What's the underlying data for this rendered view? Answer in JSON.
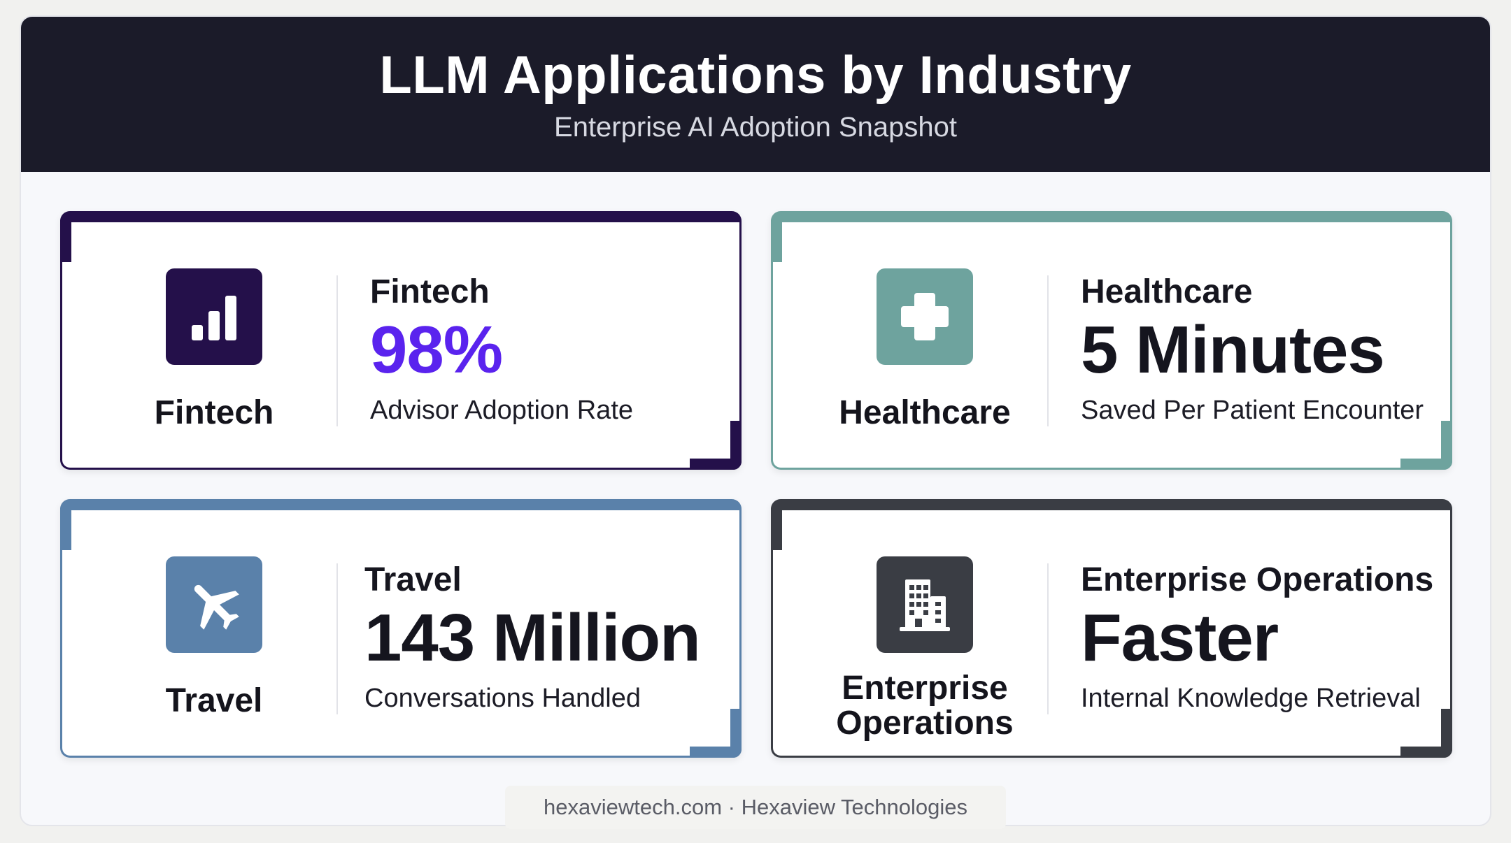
{
  "header": {
    "title": "LLM Applications by Industry",
    "subtitle": "Enterprise AI Adoption Snapshot"
  },
  "cards": [
    {
      "icon": "bar-chart-icon",
      "icon_label": "Fintech",
      "industry": "Fintech",
      "metric": "98%",
      "description": "Advisor Adoption Rate",
      "accent_color": "#24104a",
      "metric_color": "#5a23ee"
    },
    {
      "icon": "medical-cross-icon",
      "icon_label": "Healthcare",
      "industry": "Healthcare",
      "metric": "5 Minutes",
      "description": "Saved Per Patient Encounter",
      "accent_color": "#6ea39e",
      "metric_color": "#15151e"
    },
    {
      "icon": "airplane-icon",
      "icon_label": "Travel",
      "industry": "Travel",
      "metric": "143 Million",
      "description": "Conversations Handled",
      "accent_color": "#5a81aa",
      "metric_color": "#15151e"
    },
    {
      "icon": "office-building-icon",
      "icon_label": "Enterprise Operations",
      "industry": "Enterprise Operations",
      "metric": "Faster",
      "description": "Internal Knowledge Retrieval",
      "accent_color": "#3a3d44",
      "metric_color": "#15151e"
    }
  ],
  "footer": {
    "text": "hexaviewtech.com · Hexaview Technologies"
  }
}
